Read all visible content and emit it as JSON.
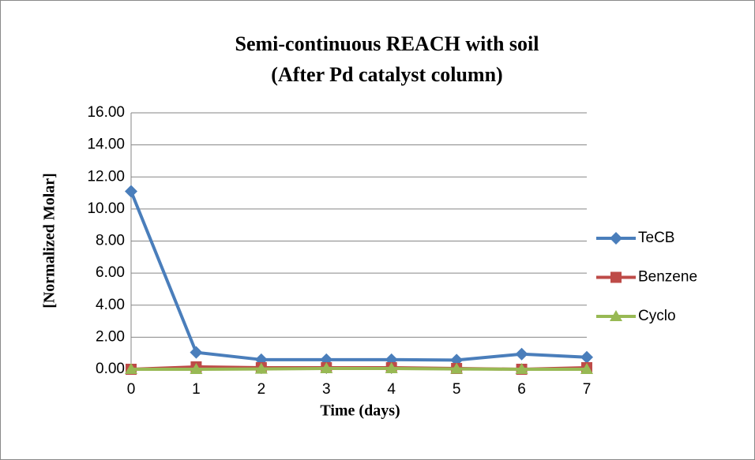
{
  "chart_data": {
    "type": "line",
    "title": [
      "Semi-continuous REACH with soil",
      "(After Pd catalyst column)"
    ],
    "x_label": "Time (days)",
    "y_label": "[Normalized Molar]",
    "x": [
      0,
      1,
      2,
      3,
      4,
      5,
      6,
      7
    ],
    "xlim": [
      0,
      7
    ],
    "xticks": [
      0,
      1,
      2,
      3,
      4,
      5,
      6,
      7
    ],
    "ylim": [
      0,
      16
    ],
    "yticks": [
      {
        "value": 0,
        "label": "0.00"
      },
      {
        "value": 2,
        "label": "2.00"
      },
      {
        "value": 4,
        "label": "4.00"
      },
      {
        "value": 6,
        "label": "6.00"
      },
      {
        "value": 8,
        "label": "8.00"
      },
      {
        "value": 10,
        "label": "10.00"
      },
      {
        "value": 12,
        "label": "12.00"
      },
      {
        "value": 14,
        "label": "14.00"
      },
      {
        "value": 16,
        "label": "16.00"
      }
    ],
    "grid": true,
    "legend": "right",
    "series": [
      {
        "name": "TeCB",
        "color": "#4a7ebb",
        "marker": "diamond",
        "values": [
          11.1,
          1.05,
          0.6,
          0.6,
          0.6,
          0.57,
          0.95,
          0.75
        ]
      },
      {
        "name": "Benzene",
        "color": "#be4b48",
        "marker": "square",
        "values": [
          0,
          0.15,
          0.1,
          0.1,
          0.1,
          0.05,
          0,
          0.1
        ]
      },
      {
        "name": "Cyclo",
        "color": "#98b954",
        "marker": "triangle",
        "values": [
          0,
          0,
          0.02,
          0.05,
          0.05,
          0.02,
          0,
          0
        ]
      }
    ]
  }
}
